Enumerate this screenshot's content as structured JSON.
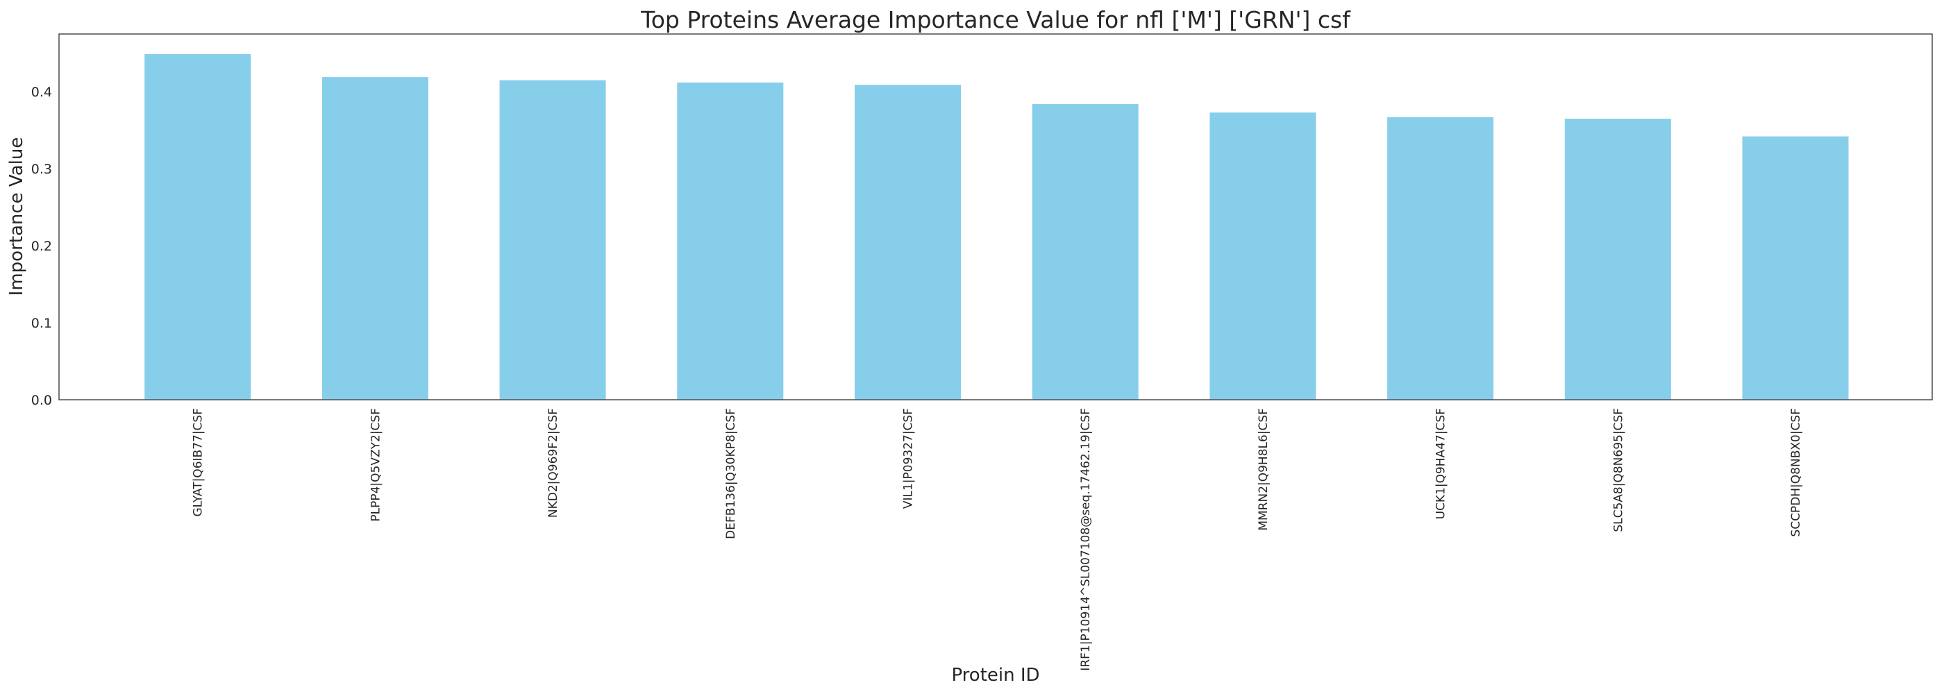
{
  "chart_data": {
    "type": "bar",
    "title": "Top Proteins Average Importance Value for nfl ['M'] ['GRN'] csf",
    "xlabel": "Protein ID",
    "ylabel": "Importance Value",
    "categories": [
      "GLYAT|Q6IB77|CSF",
      "PLPP4|Q5VZY2|CSF",
      "NKD2|Q969F2|CSF",
      "DEFB136|Q30KP8|CSF",
      "VIL1|P09327|CSF",
      "IRF1|P10914^SL007108@seq.17462.19|CSF",
      "MMRN2|Q9H8L6|CSF",
      "UCK1|Q9HA47|CSF",
      "SLC5A8|Q8N695|CSF",
      "SCCPDH|Q8NBX0|CSF"
    ],
    "values": [
      0.449,
      0.419,
      0.415,
      0.412,
      0.409,
      0.384,
      0.373,
      0.367,
      0.365,
      0.342
    ],
    "ylim": [
      0,
      0.475
    ],
    "yticks": [
      "0.0",
      "0.1",
      "0.2",
      "0.3",
      "0.4"
    ],
    "grid": false,
    "bar_color": "#87CEEB",
    "axis_color": "#4d4d4d",
    "text_color": "#262626"
  }
}
